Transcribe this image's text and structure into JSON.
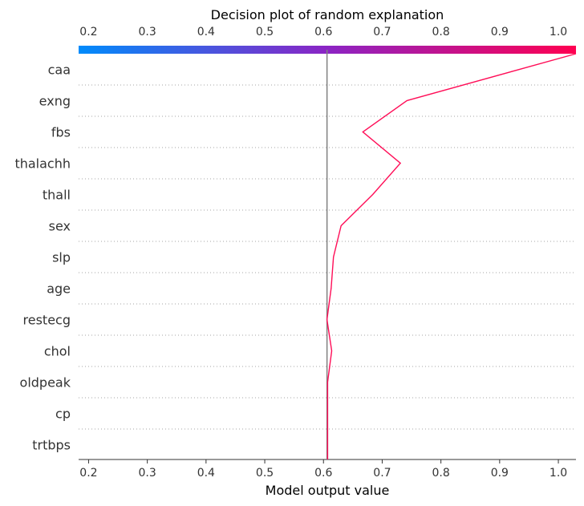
{
  "chart_data": {
    "type": "line",
    "title": "Decision plot of random explanation",
    "xlabel": "Model output value",
    "xlim": [
      0.183,
      1.03
    ],
    "x_ticks": [
      0.2,
      0.3,
      0.4,
      0.5,
      0.6,
      0.7,
      0.8,
      0.9,
      1.0
    ],
    "x_tick_labels": [
      "0.2",
      "0.3",
      "0.4",
      "0.5",
      "0.6",
      "0.7",
      "0.8",
      "0.9",
      "1.0"
    ],
    "base_value": 0.606,
    "features": [
      "caa",
      "exng",
      "fbs",
      "thalachh",
      "thall",
      "sex",
      "slp",
      "age",
      "restecg",
      "chol",
      "oldpeak",
      "cp",
      "trtbps"
    ],
    "path_values": [
      1.03,
      0.742,
      0.667,
      0.731,
      0.684,
      0.63,
      0.617,
      0.613,
      0.606,
      0.614,
      0.607,
      0.607,
      0.607,
      0.607
    ],
    "colorbar": {
      "from": "#008bfb",
      "mid": "#8b24c4",
      "to": "#ff0051"
    },
    "line_color": "#ff0d57",
    "grid": "dotted row separators"
  }
}
